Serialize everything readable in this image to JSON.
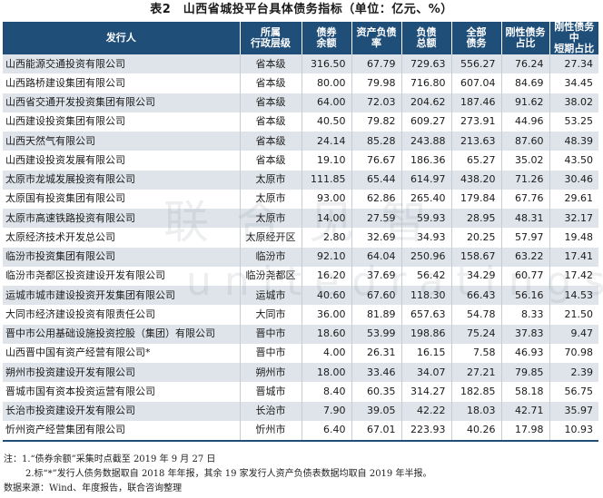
{
  "title": "表2　山西省城投平台具体债务指标（单位：亿元、%）",
  "columns": [
    "发行人",
    "所属行政层级",
    "债券余额",
    "资产负债率",
    "负债总额",
    "全部债务",
    "刚性债务占比",
    "刚性债务中短期占比"
  ],
  "header_lines": [
    [
      "发行人"
    ],
    [
      "所属",
      "行政层级"
    ],
    [
      "债券",
      "余额"
    ],
    [
      "资产负债",
      "率"
    ],
    [
      "负债",
      "总额"
    ],
    [
      "全部",
      "债务"
    ],
    [
      "刚性债务",
      "占比"
    ],
    [
      "刚性债务中",
      "短期占比"
    ]
  ],
  "rows": [
    [
      "山西能源交通投资有限公司",
      "省本级",
      "316.50",
      "67.79",
      "729.63",
      "556.27",
      "76.24",
      "27.34"
    ],
    [
      "山西路桥建设集团有限公司",
      "省本级",
      "80.00",
      "79.98",
      "716.80",
      "607.04",
      "84.69",
      "34.45"
    ],
    [
      "山西省交通开发投资集团有限公司",
      "省本级",
      "64.00",
      "72.03",
      "204.62",
      "187.46",
      "91.62",
      "38.02"
    ],
    [
      "山西建设投资集团有限公司",
      "省本级",
      "40.50",
      "79.82",
      "609.27",
      "273.91",
      "44.96",
      "53.25"
    ],
    [
      "山西天然气有限公司",
      "省本级",
      "24.14",
      "85.28",
      "243.88",
      "213.63",
      "87.60",
      "48.39"
    ],
    [
      "山西建设投资发展有限公司",
      "省本级",
      "19.10",
      "76.67",
      "186.36",
      "65.27",
      "35.02",
      "43.50"
    ],
    [
      "太原市龙城发展投资有限公司",
      "太原市",
      "111.85",
      "65.44",
      "614.97",
      "438.20",
      "71.26",
      "30.46"
    ],
    [
      "太原国有投资集团有限公司",
      "太原市",
      "93.00",
      "62.86",
      "265.40",
      "179.84",
      "67.76",
      "29.61"
    ],
    [
      "太原市高速铁路投资有限公司",
      "太原市",
      "14.00",
      "27.59",
      "59.93",
      "28.95",
      "48.31",
      "32.17"
    ],
    [
      "太原经济技术开发总公司",
      "太原经开区",
      "2.80",
      "32.69",
      "34.93",
      "20.25",
      "57.97",
      "19.48"
    ],
    [
      "临汾市投资集团有限公司",
      "临汾市",
      "92.10",
      "64.04",
      "250.96",
      "158.67",
      "63.22",
      "17.41"
    ],
    [
      "临汾市尧都区投资建设开发有限公司",
      "临汾尧都区",
      "16.20",
      "37.69",
      "56.42",
      "34.29",
      "60.77",
      "17.42"
    ],
    [
      "运城市城市建设投资开发集团有限公司",
      "运城市",
      "40.60",
      "67.60",
      "118.30",
      "66.43",
      "56.16",
      "14.53"
    ],
    [
      "大同市经济建设投资有限责任公司",
      "大同市",
      "36.00",
      "81.89",
      "657.63",
      "54.78",
      "8.33",
      "21.50"
    ],
    [
      "晋中市公用基础设施投资控股（集团）有限公司",
      "晋中市",
      "18.60",
      "53.99",
      "198.86",
      "75.24",
      "37.83",
      "9.47"
    ],
    [
      "山西晋中国有资产经营有限公司*",
      "晋中市",
      "4.00",
      "26.31",
      "16.15",
      "7.58",
      "46.93",
      "70.98"
    ],
    [
      "朔州市投资建设开发有限公司",
      "朔州市",
      "18.00",
      "33.46",
      "34.07",
      "27.21",
      "79.85",
      "2.39"
    ],
    [
      "晋城市国有资本投资运营有限公司",
      "晋城市",
      "8.40",
      "60.35",
      "314.27",
      "182.85",
      "58.18",
      "56.75"
    ],
    [
      "长治市投资建设开发有限公司",
      "长治市",
      "7.90",
      "39.05",
      "42.22",
      "18.03",
      "42.71",
      "35.97"
    ],
    [
      "忻州资产经营集团有限公司",
      "忻州市",
      "6.40",
      "67.01",
      "223.93",
      "40.26",
      "17.98",
      "10.93"
    ]
  ],
  "notes": [
    "注：1.“债券余额”采集时点截至 2019 年 9 月 27 日",
    "2.标“*”发行人债务数据取自 2018 年年报，其余 19 家发行人资产负债表数据均取自 2019 年半报。",
    "数据来源：Wind、年度报告，联合咨询整理"
  ],
  "watermark": {
    "cn": "联合见智",
    "en": "unitedratings.com.cn"
  },
  "colors": {
    "header_bg": "#1f4e79",
    "header_text": "#ffffff",
    "stripe": "#dfe4ea",
    "row_alt": "#ffffff"
  }
}
